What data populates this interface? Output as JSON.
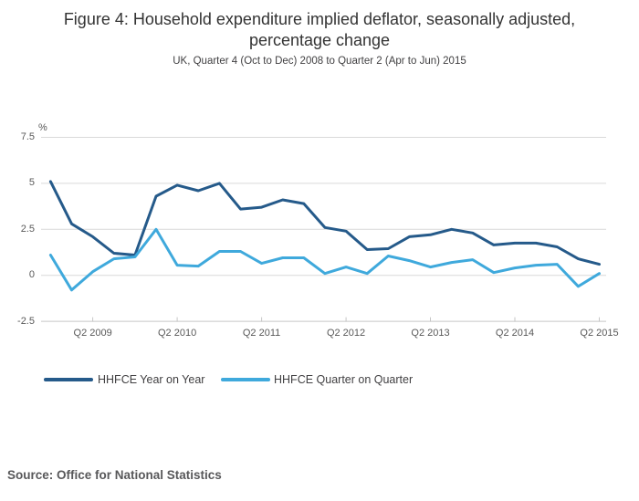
{
  "header": {
    "title_line1": "Figure 4: Household expenditure implied deflator, seasonally adjusted,",
    "title_line2": "percentage change",
    "subtitle": "UK, Quarter 4 (Oct to Dec) 2008 to Quarter 2 (Apr to Jun) 2015"
  },
  "chart_data": {
    "type": "line",
    "title": "Figure 4: Household expenditure implied deflator, seasonally adjusted, percentage change",
    "subtitle": "UK, Quarter 4 (Oct to Dec) 2008 to Quarter 2 (Apr to Jun) 2015",
    "unit_label": "%",
    "grid": true,
    "legend_position": "bottom-left",
    "ylim": [
      -2.5,
      7.5
    ],
    "y_ticks": [
      "7.5",
      "5",
      "2.5",
      "0",
      "-2.5"
    ],
    "y_tick_values": [
      7.5,
      5,
      2.5,
      0,
      -2.5
    ],
    "x_tick_labels": [
      "Q2 2009",
      "Q2 2010",
      "Q2 2011",
      "Q2 2012",
      "Q2 2013",
      "Q2 2014",
      "Q2 2015"
    ],
    "x_tick_indices": [
      2,
      6,
      10,
      14,
      18,
      22,
      26
    ],
    "categories": [
      "Q4 2008",
      "Q1 2009",
      "Q2 2009",
      "Q3 2009",
      "Q4 2009",
      "Q1 2010",
      "Q2 2010",
      "Q3 2010",
      "Q4 2010",
      "Q1 2011",
      "Q2 2011",
      "Q3 2011",
      "Q4 2011",
      "Q1 2012",
      "Q2 2012",
      "Q3 2012",
      "Q4 2012",
      "Q1 2013",
      "Q2 2013",
      "Q3 2013",
      "Q4 2013",
      "Q1 2014",
      "Q2 2014",
      "Q3 2014",
      "Q4 2014",
      "Q1 2015",
      "Q2 2015"
    ],
    "series": [
      {
        "name": "HHFCE Year on Year",
        "color": "#255a8a",
        "values": [
          5.1,
          2.8,
          2.1,
          1.2,
          1.1,
          4.3,
          4.9,
          4.6,
          5.0,
          3.6,
          3.7,
          4.1,
          3.9,
          2.6,
          2.4,
          1.4,
          1.45,
          2.1,
          2.2,
          2.5,
          2.3,
          1.65,
          1.75,
          1.75,
          1.55,
          0.9,
          0.6
        ]
      },
      {
        "name": "HHFCE Quarter on Quarter",
        "color": "#3fa9dc",
        "values": [
          1.1,
          -0.8,
          0.2,
          0.9,
          1.0,
          2.5,
          0.55,
          0.5,
          1.3,
          1.3,
          0.65,
          0.95,
          0.95,
          0.1,
          0.45,
          0.1,
          1.05,
          0.8,
          0.45,
          0.7,
          0.85,
          0.15,
          0.4,
          0.55,
          0.6,
          -0.6,
          0.1
        ]
      }
    ]
  },
  "source": "Source: Office for National Statistics"
}
